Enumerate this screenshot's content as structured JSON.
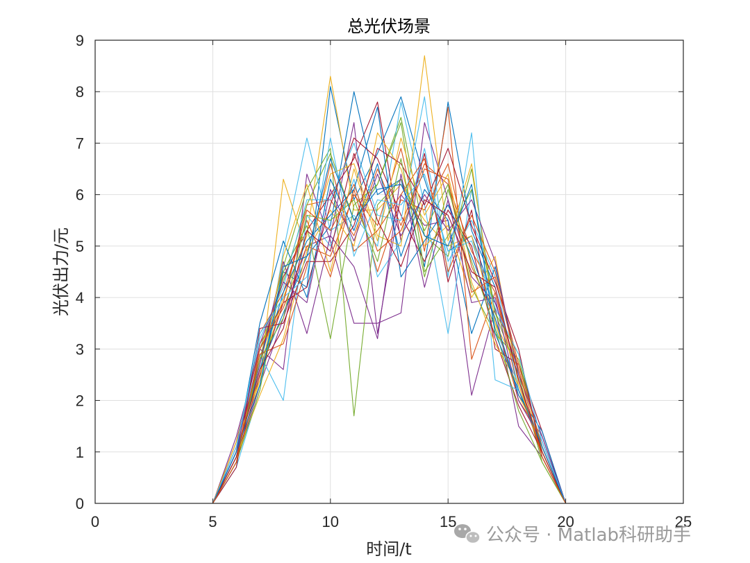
{
  "chart_data": {
    "type": "line",
    "title": "总光伏场景",
    "xlabel": "时间/t",
    "ylabel": "光伏出力/元",
    "xlim": [
      0,
      25
    ],
    "ylim": [
      0,
      9
    ],
    "xticks": [
      0,
      5,
      10,
      15,
      20,
      25
    ],
    "yticks": [
      0,
      1,
      2,
      3,
      4,
      5,
      6,
      7,
      8,
      9
    ],
    "grid": true,
    "legend": "none",
    "x": [
      1,
      2,
      3,
      4,
      5,
      6,
      7,
      8,
      9,
      10,
      11,
      12,
      13,
      14,
      15,
      16,
      17,
      18,
      19,
      20,
      21,
      22,
      23,
      24
    ],
    "colors": [
      "#0072BD",
      "#D95319",
      "#EDB120",
      "#7E2F8E",
      "#77AC30",
      "#4DBEEE",
      "#A2142F"
    ],
    "series": [
      {
        "values": [
          0,
          0,
          0,
          0,
          0,
          0.9,
          2.7,
          4.5,
          4.2,
          8.1,
          5.9,
          6.8,
          7.9,
          6.3,
          4.9,
          5.2,
          3.9,
          2.6,
          1.1,
          0,
          0,
          0,
          0,
          0
        ]
      },
      {
        "values": [
          0,
          0,
          0,
          0,
          0,
          1.1,
          3.1,
          3.9,
          5.8,
          5.9,
          5.2,
          6.5,
          5.4,
          6.6,
          6.2,
          4.9,
          4.1,
          2.2,
          1.0,
          0,
          0,
          0,
          0,
          0
        ]
      },
      {
        "values": [
          0,
          0,
          0,
          0,
          0,
          1.0,
          2.5,
          4.0,
          5.2,
          8.3,
          5.7,
          5.7,
          6.2,
          5.5,
          5.0,
          5.2,
          3.5,
          2.1,
          1.2,
          0,
          0,
          0,
          0,
          0
        ]
      },
      {
        "values": [
          0,
          0,
          0,
          0,
          0,
          0.8,
          2.3,
          3.6,
          5.0,
          5.2,
          7.4,
          3.3,
          6.0,
          5.4,
          5.5,
          2.1,
          3.8,
          1.5,
          0.9,
          0,
          0,
          0,
          0,
          0
        ]
      },
      {
        "values": [
          0,
          0,
          0,
          0,
          0,
          1.2,
          3.0,
          4.3,
          5.8,
          6.8,
          5.5,
          6.2,
          7.5,
          5.2,
          4.8,
          6.5,
          3.7,
          2.5,
          0.8,
          0,
          0,
          0,
          0,
          0
        ]
      },
      {
        "values": [
          0,
          0,
          0,
          0,
          0,
          0.7,
          2.2,
          4.9,
          7.1,
          5.3,
          5.6,
          5.0,
          7.8,
          5.8,
          3.3,
          6.1,
          3.4,
          2.3,
          1.0,
          0,
          0,
          0,
          0,
          0
        ]
      },
      {
        "values": [
          0,
          0,
          0,
          0,
          0,
          1.1,
          2.8,
          4.4,
          5.3,
          6.0,
          6.7,
          7.8,
          5.1,
          6.8,
          4.3,
          5.7,
          3.0,
          2.7,
          1.4,
          0,
          0,
          0,
          0,
          0
        ]
      },
      {
        "values": [
          0,
          0,
          0,
          0,
          0,
          0.9,
          2.6,
          3.7,
          4.8,
          5.4,
          8.0,
          6.0,
          6.3,
          4.6,
          7.8,
          5.3,
          4.2,
          2.4,
          0.9,
          0,
          0,
          0,
          0,
          0
        ]
      },
      {
        "values": [
          0,
          0,
          0,
          0,
          0,
          1.0,
          3.3,
          4.1,
          5.5,
          4.4,
          6.1,
          4.5,
          5.9,
          5.7,
          6.6,
          4.6,
          3.6,
          2.0,
          1.3,
          0,
          0,
          0,
          0,
          0
        ]
      },
      {
        "values": [
          0,
          0,
          0,
          0,
          0,
          0.8,
          2.4,
          6.3,
          4.9,
          5.7,
          5.0,
          7.2,
          6.5,
          5.0,
          5.4,
          4.0,
          4.8,
          2.3,
          1.0,
          0,
          0,
          0,
          0,
          0
        ]
      },
      {
        "values": [
          0,
          0,
          0,
          0,
          0,
          1.3,
          3.0,
          2.6,
          6.4,
          5.1,
          3.5,
          3.5,
          3.7,
          7.4,
          5.9,
          4.4,
          3.9,
          2.6,
          1.1,
          0,
          0,
          0,
          0,
          0
        ]
      },
      {
        "values": [
          0,
          0,
          0,
          0,
          0,
          0.9,
          2.8,
          4.6,
          6.1,
          6.9,
          1.7,
          5.8,
          6.3,
          5.3,
          6.2,
          4.2,
          3.3,
          2.8,
          1.0,
          0,
          0,
          0,
          0,
          0
        ]
      },
      {
        "values": [
          0,
          0,
          0,
          0,
          0,
          1.1,
          2.9,
          2.0,
          5.6,
          5.0,
          6.3,
          4.4,
          5.1,
          6.9,
          4.7,
          5.5,
          4.4,
          2.2,
          1.2,
          0,
          0,
          0,
          0,
          0
        ]
      },
      {
        "values": [
          0,
          0,
          0,
          0,
          0,
          0.8,
          2.5,
          3.9,
          4.2,
          5.8,
          7.1,
          6.7,
          5.6,
          4.7,
          5.7,
          5.0,
          3.2,
          1.9,
          1.0,
          0,
          0,
          0,
          0,
          0
        ]
      },
      {
        "values": [
          0,
          0,
          0,
          0,
          0,
          1.0,
          3.5,
          5.1,
          4.0,
          6.3,
          5.3,
          6.6,
          4.8,
          6.1,
          5.5,
          3.3,
          4.6,
          2.5,
          1.3,
          0,
          0,
          0,
          0,
          0
        ]
      },
      {
        "values": [
          0,
          0,
          0,
          0,
          0,
          1.2,
          3.0,
          3.8,
          5.0,
          4.8,
          6.0,
          5.4,
          6.9,
          4.9,
          7.7,
          2.8,
          4.1,
          2.4,
          0.9,
          0,
          0,
          0,
          0,
          0
        ]
      },
      {
        "values": [
          0,
          0,
          0,
          0,
          0,
          0.9,
          2.1,
          3.2,
          4.9,
          6.4,
          6.6,
          5.2,
          5.0,
          8.7,
          5.1,
          6.6,
          3.5,
          2.6,
          1.1,
          0,
          0,
          0,
          0,
          0
        ]
      },
      {
        "values": [
          0,
          0,
          0,
          0,
          0,
          1.0,
          2.7,
          4.7,
          3.3,
          5.2,
          4.6,
          3.2,
          6.4,
          4.2,
          5.9,
          3.9,
          4.0,
          2.0,
          1.2,
          0,
          0,
          0,
          0,
          0
        ]
      },
      {
        "values": [
          0,
          0,
          0,
          0,
          0,
          0.8,
          2.2,
          4.5,
          5.4,
          3.2,
          5.8,
          6.2,
          7.4,
          4.5,
          5.2,
          6.1,
          3.7,
          2.9,
          1.0,
          0,
          0,
          0,
          0,
          0
        ]
      },
      {
        "values": [
          0,
          0,
          0,
          0,
          0,
          1.1,
          3.2,
          4.2,
          5.9,
          5.9,
          7.0,
          5.6,
          5.5,
          7.9,
          4.4,
          7.2,
          2.4,
          2.2,
          1.2,
          0,
          0,
          0,
          0,
          0
        ]
      },
      {
        "values": [
          0,
          0,
          0,
          0,
          0,
          0.7,
          3.4,
          3.5,
          4.7,
          4.7,
          5.4,
          6.9,
          6.6,
          5.8,
          6.9,
          5.4,
          4.3,
          3.0,
          0.9,
          0,
          0,
          0,
          0,
          0
        ]
      },
      {
        "values": [
          0,
          0,
          0,
          0,
          0,
          1.0,
          2.6,
          4.1,
          5.1,
          5.6,
          6.1,
          7.7,
          4.4,
          5.1,
          5.8,
          4.8,
          3.6,
          2.1,
          1.4,
          0,
          0,
          0,
          0,
          0
        ]
      },
      {
        "values": [
          0,
          0,
          0,
          0,
          0,
          0.9,
          2.9,
          3.1,
          4.6,
          6.6,
          4.9,
          5.3,
          6.0,
          6.7,
          4.5,
          5.6,
          4.5,
          2.7,
          1.1,
          0,
          0,
          0,
          0,
          0
        ]
      },
      {
        "values": [
          0,
          0,
          0,
          0,
          0,
          1.2,
          2.4,
          4.8,
          6.2,
          4.5,
          6.5,
          5.1,
          7.1,
          5.6,
          6.4,
          4.3,
          3.1,
          2.3,
          1.0,
          0,
          0,
          0,
          0,
          0
        ]
      },
      {
        "values": [
          0,
          0,
          0,
          0,
          0,
          1.0,
          3.1,
          4.3,
          3.9,
          6.1,
          5.1,
          6.4,
          5.2,
          6.0,
          5.3,
          5.9,
          4.7,
          2.5,
          1.3,
          0,
          0,
          0,
          0,
          0
        ]
      },
      {
        "values": [
          0,
          0,
          0,
          0,
          0,
          0.8,
          2.8,
          3.6,
          5.6,
          5.5,
          5.9,
          4.7,
          6.7,
          4.4,
          6.1,
          4.7,
          3.4,
          1.8,
          0.8,
          0,
          0,
          0,
          0,
          0
        ]
      },
      {
        "values": [
          0,
          0,
          0,
          0,
          0,
          1.1,
          3.3,
          4.0,
          4.4,
          7.1,
          4.8,
          5.9,
          5.8,
          6.4,
          4.9,
          5.1,
          3.8,
          2.9,
          1.2,
          0,
          0,
          0,
          0,
          0
        ]
      },
      {
        "values": [
          0,
          0,
          0,
          0,
          0,
          0.9,
          2.6,
          3.4,
          5.3,
          4.9,
          6.8,
          5.5,
          4.6,
          5.9,
          5.6,
          4.5,
          4.2,
          2.4,
          1.0,
          0,
          0,
          0,
          0,
          0
        ]
      },
      {
        "values": [
          0,
          0,
          0,
          0,
          0,
          1.0,
          2.3,
          4.6,
          4.8,
          6.7,
          5.5,
          6.1,
          6.2,
          5.2,
          5.0,
          6.2,
          3.3,
          2.2,
          1.1,
          0,
          0,
          0,
          0,
          0
        ]
      },
      {
        "values": [
          0,
          0,
          0,
          0,
          0,
          0.8,
          3.0,
          3.9,
          5.7,
          5.3,
          6.2,
          4.9,
          5.3,
          6.5,
          6.3,
          4.1,
          4.4,
          2.6,
          0.9,
          0,
          0,
          0,
          0,
          0
        ]
      }
    ]
  },
  "watermark": {
    "text": "公众号 · Matlab科研助手",
    "icon": "wechat-icon"
  }
}
